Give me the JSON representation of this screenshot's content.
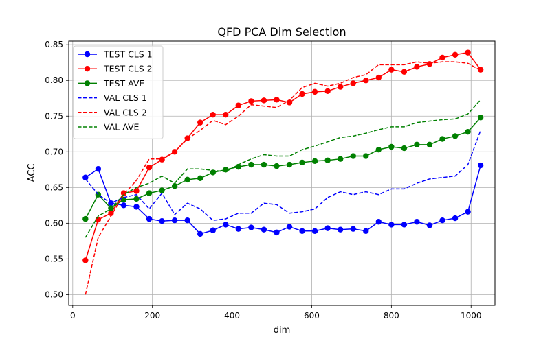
{
  "chart_data": {
    "type": "line",
    "title": "QFD PCA Dim Selection",
    "xlabel": "dim",
    "ylabel": "ACC",
    "xlim": [
      -10,
      1060
    ],
    "ylim": [
      0.485,
      0.855
    ],
    "xticks": [
      0,
      200,
      400,
      600,
      800,
      1000
    ],
    "yticks": [
      0.5,
      0.55,
      0.6,
      0.65,
      0.7,
      0.75,
      0.8,
      0.85
    ],
    "xtick_labels": [
      "0",
      "200",
      "400",
      "600",
      "800",
      "1000"
    ],
    "ytick_labels": [
      "0.50",
      "0.55",
      "0.60",
      "0.65",
      "0.70",
      "0.75",
      "0.80",
      "0.85"
    ],
    "grid": true,
    "legend_position": "upper-left",
    "x": [
      32,
      64,
      96,
      128,
      160,
      192,
      224,
      256,
      288,
      320,
      352,
      384,
      416,
      448,
      480,
      512,
      544,
      576,
      608,
      640,
      672,
      704,
      736,
      768,
      800,
      832,
      864,
      896,
      928,
      960,
      992,
      1024
    ],
    "series": [
      {
        "name": "TEST CLS 1",
        "color": "#0000ff",
        "style": "solid-marker",
        "values": [
          0.664,
          0.676,
          0.628,
          0.625,
          0.623,
          0.606,
          0.603,
          0.604,
          0.604,
          0.585,
          0.59,
          0.598,
          0.592,
          0.594,
          0.591,
          0.587,
          0.595,
          0.589,
          0.589,
          0.593,
          0.591,
          0.592,
          0.589,
          0.602,
          0.598,
          0.598,
          0.602,
          0.597,
          0.604,
          0.607,
          0.616,
          0.681
        ]
      },
      {
        "name": "TEST CLS 2",
        "color": "#ff0000",
        "style": "solid-marker",
        "values": [
          0.548,
          0.605,
          0.614,
          0.642,
          0.645,
          0.678,
          0.689,
          0.7,
          0.719,
          0.741,
          0.752,
          0.752,
          0.765,
          0.771,
          0.772,
          0.773,
          0.769,
          0.781,
          0.784,
          0.785,
          0.791,
          0.796,
          0.8,
          0.804,
          0.815,
          0.812,
          0.819,
          0.823,
          0.832,
          0.836,
          0.839,
          0.815
        ]
      },
      {
        "name": "TEST AVE",
        "color": "#008000",
        "style": "solid-marker",
        "values": [
          0.606,
          0.64,
          0.621,
          0.633,
          0.634,
          0.642,
          0.646,
          0.652,
          0.661,
          0.663,
          0.671,
          0.675,
          0.679,
          0.682,
          0.682,
          0.68,
          0.682,
          0.685,
          0.687,
          0.688,
          0.69,
          0.694,
          0.694,
          0.703,
          0.707,
          0.705,
          0.71,
          0.71,
          0.718,
          0.722,
          0.728,
          0.748
        ]
      },
      {
        "name": "VAL CLS 1",
        "color": "#0000ff",
        "style": "dashed",
        "values": [
          0.662,
          0.64,
          0.628,
          0.636,
          0.64,
          0.62,
          0.642,
          0.612,
          0.628,
          0.62,
          0.604,
          0.606,
          0.614,
          0.614,
          0.628,
          0.626,
          0.614,
          0.616,
          0.62,
          0.636,
          0.644,
          0.64,
          0.644,
          0.64,
          0.648,
          0.648,
          0.656,
          0.662,
          0.664,
          0.666,
          0.682,
          0.73
        ]
      },
      {
        "name": "VAL CLS 2",
        "color": "#ff0000",
        "style": "dashed",
        "values": [
          0.5,
          0.58,
          0.61,
          0.64,
          0.66,
          0.69,
          0.69,
          0.7,
          0.718,
          0.73,
          0.744,
          0.738,
          0.75,
          0.766,
          0.764,
          0.762,
          0.772,
          0.79,
          0.796,
          0.792,
          0.796,
          0.804,
          0.808,
          0.822,
          0.822,
          0.822,
          0.826,
          0.824,
          0.826,
          0.826,
          0.824,
          0.814
        ]
      },
      {
        "name": "VAL AVE",
        "color": "#008000",
        "style": "dashed",
        "values": [
          0.58,
          0.61,
          0.62,
          0.64,
          0.65,
          0.656,
          0.666,
          0.656,
          0.676,
          0.676,
          0.674,
          0.672,
          0.682,
          0.69,
          0.696,
          0.694,
          0.694,
          0.703,
          0.708,
          0.714,
          0.72,
          0.722,
          0.726,
          0.731,
          0.735,
          0.735,
          0.741,
          0.743,
          0.745,
          0.746,
          0.753,
          0.773
        ]
      }
    ]
  }
}
